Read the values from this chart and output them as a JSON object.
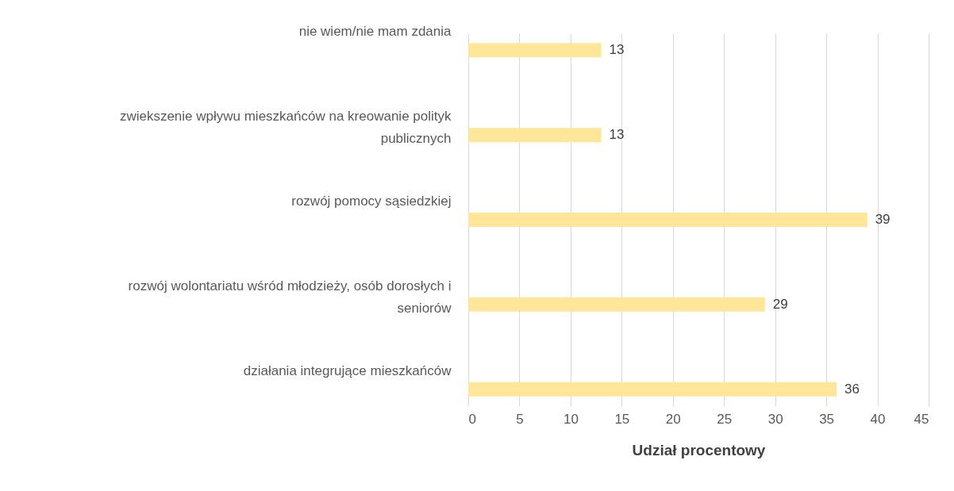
{
  "chart_data": {
    "type": "bar",
    "orientation": "horizontal",
    "xlabel": "Udział procentowy",
    "categories": [
      "nie wiem/nie mam zdania",
      "zwiekszenie wpływu mieszkańców na kreowanie polityk publicznych",
      "rozwój pomocy sąsiedzkiej",
      "rozwój wolontariatu wśród młodzieży, osób dorosłych i seniorów",
      "działania integrujące mieszkańców"
    ],
    "values": [
      13,
      13,
      39,
      29,
      36
    ],
    "color": "#ffe699",
    "data_labels": true,
    "xlim": [
      0,
      45
    ],
    "xticks": [
      0,
      5,
      10,
      15,
      20,
      25,
      30,
      35,
      40,
      45
    ],
    "grid": "x"
  }
}
